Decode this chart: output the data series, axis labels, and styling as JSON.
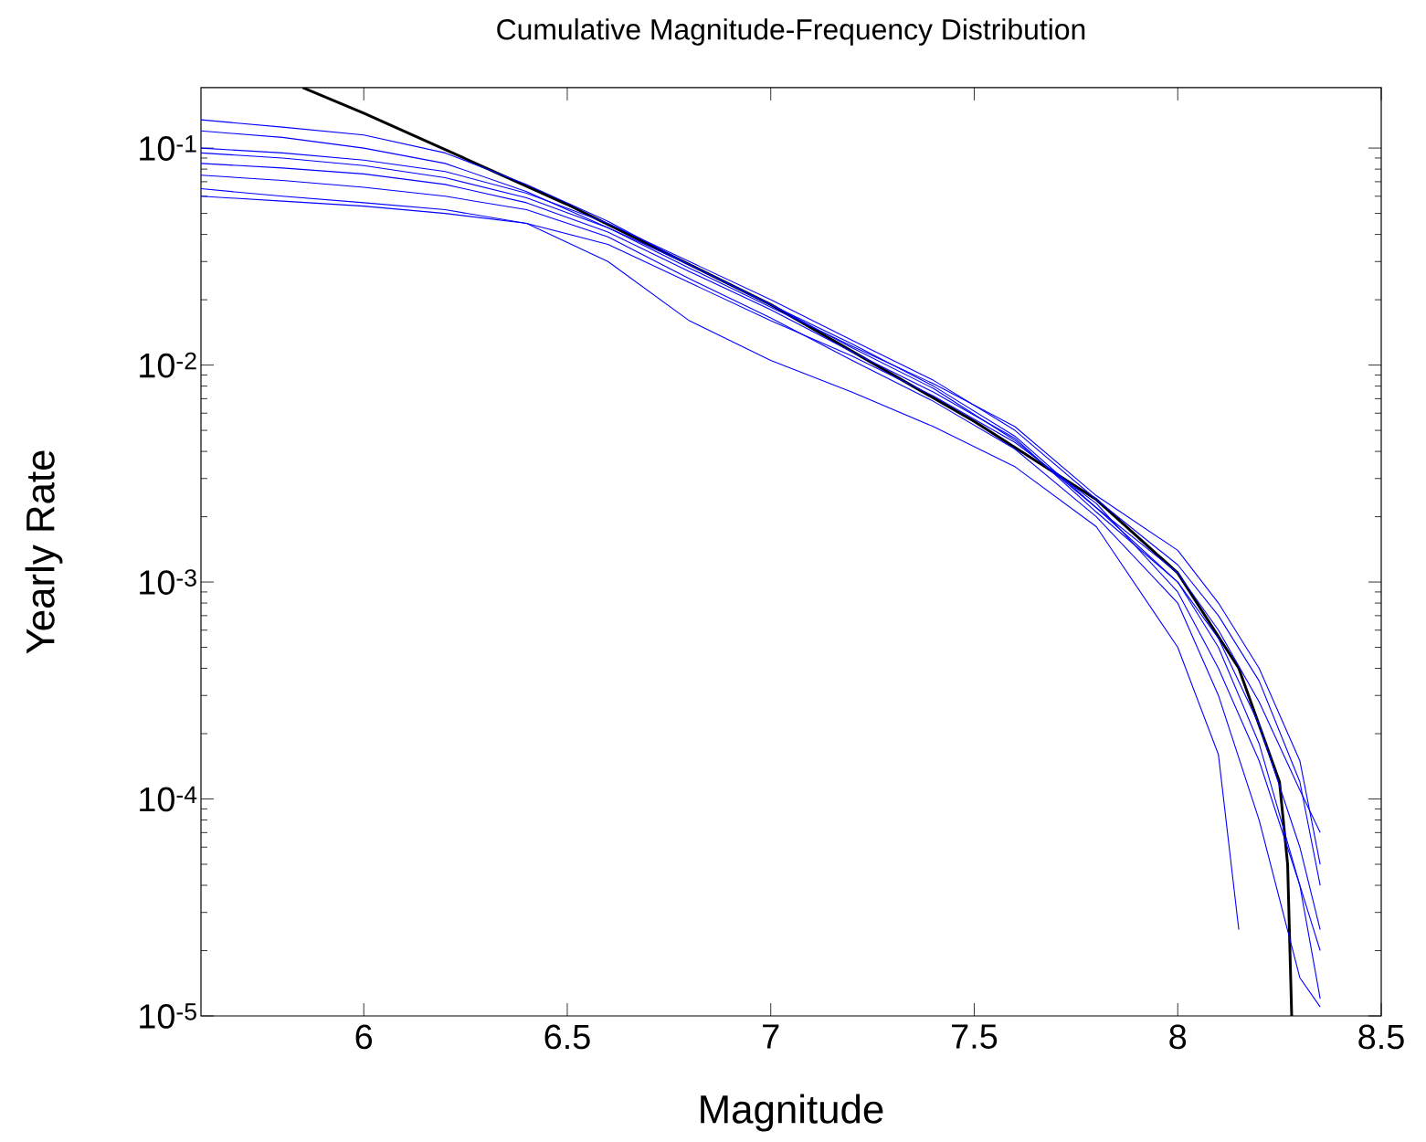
{
  "chart_data": {
    "type": "line",
    "title": "Cumulative Magnitude-Frequency Distribution",
    "xlabel": "Magnitude",
    "ylabel": "Yearly Rate",
    "log": "y",
    "xlim": [
      5.6,
      8.5
    ],
    "ylim": [
      1e-05,
      0.19
    ],
    "xticks": [
      6,
      6.5,
      7,
      7.5,
      8,
      8.5
    ],
    "yticks": [
      {
        "value": 1e-05,
        "label": "10$^{-5}$"
      },
      {
        "value": 0.0001,
        "label": "10$^{-4}$"
      },
      {
        "value": 0.001,
        "label": "10$^{-3}$"
      },
      {
        "value": 0.01,
        "label": "10$^{-2}$"
      },
      {
        "value": 0.1,
        "label": "10$^{-1}$"
      }
    ],
    "grid": false,
    "marker": "none",
    "line_style": "solid",
    "x": [
      5.6,
      5.8,
      6.0,
      6.2,
      6.4,
      6.6,
      6.8,
      7.0,
      7.2,
      7.4,
      7.6,
      7.8,
      8.0,
      8.1,
      8.2,
      8.3,
      8.35
    ],
    "series": [
      {
        "color": "#000000",
        "x": [
          5.85,
          6.0,
          6.5,
          7.0,
          7.5,
          7.8,
          8.0,
          8.15,
          8.25,
          8.27,
          8.28
        ],
        "values": [
          0.19,
          0.145,
          0.055,
          0.019,
          0.0055,
          0.0024,
          0.0011,
          0.0004,
          0.00012,
          5e-05,
          1e-05
        ]
      },
      {
        "color": "#0000ff",
        "values": [
          0.135,
          0.125,
          0.115,
          0.095,
          0.068,
          0.046,
          0.029,
          0.019,
          0.012,
          0.0078,
          0.0045,
          0.0022,
          0.0011,
          0.0006,
          0.00028,
          0.00011,
          7e-05
        ]
      },
      {
        "color": "#0000ff",
        "values": [
          0.06,
          0.057,
          0.054,
          0.05,
          0.045,
          0.036,
          0.024,
          0.016,
          0.011,
          0.0072,
          0.0044,
          0.0023,
          0.0009,
          0.0004,
          0.00015,
          4e-05,
          2e-05
        ]
      },
      {
        "color": "#0000ff",
        "x": [
          5.6,
          5.8,
          6.0,
          6.2,
          6.4,
          6.6,
          6.8,
          7.0,
          7.2,
          7.4,
          7.6,
          7.8,
          8.0,
          8.1,
          8.15
        ],
        "values": [
          0.065,
          0.06,
          0.056,
          0.052,
          0.045,
          0.03,
          0.016,
          0.0105,
          0.0075,
          0.0052,
          0.0034,
          0.0018,
          0.0005,
          0.00016,
          2.5e-05
        ]
      },
      {
        "color": "#0000ff",
        "values": [
          0.1,
          0.095,
          0.088,
          0.078,
          0.062,
          0.045,
          0.03,
          0.02,
          0.013,
          0.0085,
          0.005,
          0.0024,
          0.0012,
          0.0007,
          0.00035,
          0.00012,
          4e-05
        ]
      },
      {
        "color": "#0000ff",
        "values": [
          0.085,
          0.081,
          0.076,
          0.068,
          0.056,
          0.041,
          0.027,
          0.018,
          0.0115,
          0.0075,
          0.0046,
          0.0021,
          0.001,
          0.00055,
          0.00022,
          6e-05,
          2.5e-05
        ]
      },
      {
        "color": "#0000ff",
        "values": [
          0.12,
          0.112,
          0.1,
          0.085,
          0.063,
          0.043,
          0.028,
          0.0185,
          0.0122,
          0.0082,
          0.0052,
          0.0025,
          0.0014,
          0.0008,
          0.0004,
          0.00015,
          5e-05
        ]
      },
      {
        "color": "#0000ff",
        "values": [
          0.075,
          0.071,
          0.066,
          0.06,
          0.052,
          0.039,
          0.025,
          0.0165,
          0.0105,
          0.0068,
          0.0041,
          0.002,
          0.0008,
          0.0003,
          8e-05,
          1.5e-05,
          1.1e-05
        ]
      },
      {
        "color": "#0000ff",
        "values": [
          0.095,
          0.09,
          0.083,
          0.073,
          0.059,
          0.043,
          0.029,
          0.019,
          0.0125,
          0.008,
          0.0047,
          0.0022,
          0.001,
          0.0005,
          0.00018,
          4e-05,
          1.2e-05
        ]
      }
    ]
  }
}
